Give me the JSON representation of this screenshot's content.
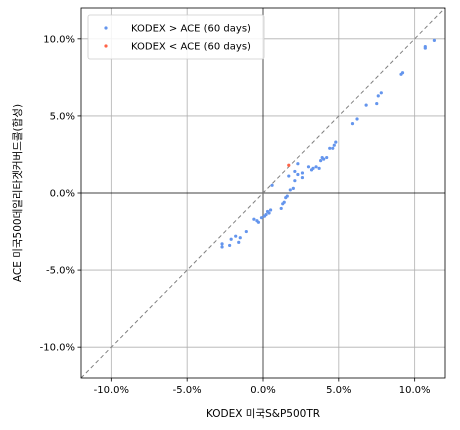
{
  "chart_data": {
    "type": "scatter",
    "xlabel": "KODEX 미국S&P500TR",
    "ylabel": "ACE 미국500데일리타겟커버드콜(합성)",
    "xlim": [
      -12.0,
      12.0
    ],
    "ylim": [
      -12.0,
      12.0
    ],
    "x_ticks": [
      -10,
      -5,
      0,
      5,
      10
    ],
    "y_ticks": [
      -10,
      -5,
      0,
      5,
      10
    ],
    "x_tick_labels": [
      "-10.0%",
      "-5.0%",
      "0.0%",
      "5.0%",
      "10.0%"
    ],
    "y_tick_labels": [
      "-10.0%",
      "-5.0%",
      "0.0%",
      "5.0%",
      "10.0%"
    ],
    "grid": true,
    "reference_line": "y = x (dashed gray)",
    "zero_lines": true,
    "legend_position": "top-left",
    "series": [
      {
        "name": "KODEX > ACE (60 days)",
        "color": "#6495ed",
        "points": [
          [
            11.3,
            9.9
          ],
          [
            10.7,
            9.5
          ],
          [
            10.7,
            9.4
          ],
          [
            9.2,
            7.8
          ],
          [
            9.1,
            7.7
          ],
          [
            7.8,
            6.5
          ],
          [
            7.6,
            6.3
          ],
          [
            7.5,
            5.8
          ],
          [
            6.8,
            5.7
          ],
          [
            6.2,
            4.8
          ],
          [
            5.9,
            4.5
          ],
          [
            4.8,
            3.3
          ],
          [
            4.7,
            3.1
          ],
          [
            4.6,
            2.9
          ],
          [
            4.4,
            2.9
          ],
          [
            4.2,
            2.3
          ],
          [
            4.0,
            2.2
          ],
          [
            3.9,
            2.3
          ],
          [
            3.8,
            2.1
          ],
          [
            3.7,
            1.6
          ],
          [
            3.5,
            1.7
          ],
          [
            3.3,
            1.6
          ],
          [
            3.2,
            1.5
          ],
          [
            3.0,
            1.7
          ],
          [
            2.6,
            1.3
          ],
          [
            2.6,
            1.0
          ],
          [
            2.3,
            1.9
          ],
          [
            2.3,
            1.2
          ],
          [
            2.1,
            1.4
          ],
          [
            2.1,
            0.8
          ],
          [
            2.0,
            0.3
          ],
          [
            1.8,
            0.2
          ],
          [
            1.7,
            1.1
          ],
          [
            1.6,
            -0.2
          ],
          [
            1.5,
            -0.3
          ],
          [
            1.4,
            -0.6
          ],
          [
            1.3,
            -0.7
          ],
          [
            1.2,
            -1.0
          ],
          [
            0.6,
            0.5
          ],
          [
            0.5,
            -1.1
          ],
          [
            0.4,
            -1.3
          ],
          [
            0.3,
            -1.2
          ],
          [
            0.2,
            -1.4
          ],
          [
            0.1,
            -1.5
          ],
          [
            -0.1,
            -1.6
          ],
          [
            -0.3,
            -1.9
          ],
          [
            -0.4,
            -1.8
          ],
          [
            -0.6,
            -1.7
          ],
          [
            -1.1,
            -2.5
          ],
          [
            -1.5,
            -2.9
          ],
          [
            -1.6,
            -3.2
          ],
          [
            -1.8,
            -2.8
          ],
          [
            -2.1,
            -3.0
          ],
          [
            -2.2,
            -3.4
          ],
          [
            -2.7,
            -3.3
          ],
          [
            -2.7,
            -3.5
          ]
        ]
      },
      {
        "name": "KODEX < ACE (60 days)",
        "color": "#ff6347",
        "points": [
          [
            1.7,
            1.8
          ]
        ]
      }
    ]
  }
}
